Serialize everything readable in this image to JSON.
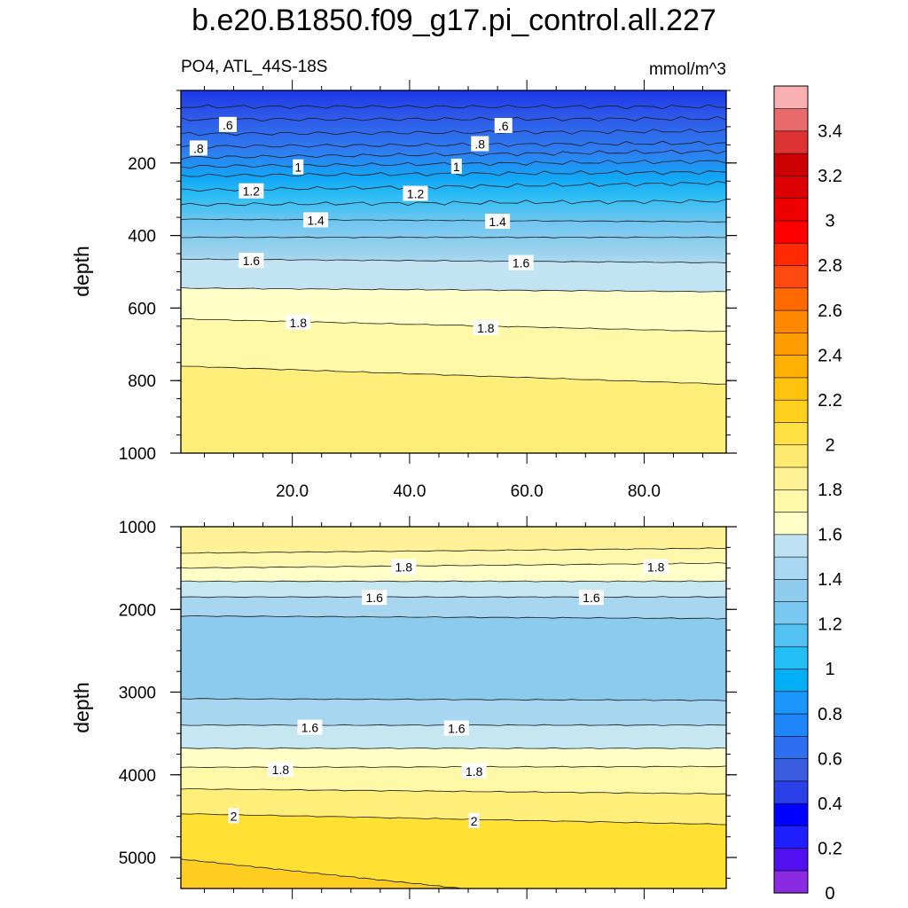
{
  "title": "b.e20.B1850.f09_g17.pi_control.all.227",
  "subtitle_left": "PO4, ATL_44S-18S",
  "subtitle_right": "mmol/m^3",
  "chart_data": [
    {
      "type": "heatmap",
      "panel": "upper",
      "ylabel": "depth",
      "ylim": [
        1000,
        0
      ],
      "xlim": [
        1,
        94
      ],
      "x_ticks": [
        "20.0",
        "40.0",
        "60.0",
        "80.0"
      ],
      "x_tick_values": [
        20,
        40,
        60,
        80
      ],
      "y_ticks": [
        "200",
        "400",
        "600",
        "800",
        "1000"
      ],
      "y_tick_values": [
        200,
        400,
        600,
        800,
        1000
      ],
      "contours": [
        {
          "level": 0.5,
          "depth_left": 45,
          "depth_right": 45
        },
        {
          "level": 0.6,
          "depth_left": 80,
          "depth_right": 78
        },
        {
          "level": 0.7,
          "depth_left": 120,
          "depth_right": 112
        },
        {
          "level": 0.8,
          "depth_left": 155,
          "depth_right": 145
        },
        {
          "level": 0.9,
          "depth_left": 185,
          "depth_right": 168
        },
        {
          "level": 1.0,
          "depth_left": 210,
          "depth_right": 195
        },
        {
          "level": 1.1,
          "depth_left": 235,
          "depth_right": 225
        },
        {
          "level": 1.2,
          "depth_left": 275,
          "depth_right": 255
        },
        {
          "level": 1.3,
          "depth_left": 315,
          "depth_right": 305
        },
        {
          "level": 1.4,
          "depth_left": 355,
          "depth_right": 362
        },
        {
          "level": 1.5,
          "depth_left": 405,
          "depth_right": 405
        },
        {
          "level": 1.6,
          "depth_left": 465,
          "depth_right": 475
        },
        {
          "level": 1.7,
          "depth_left": 545,
          "depth_right": 555
        },
        {
          "level": 1.8,
          "depth_left": 630,
          "depth_right": 665
        },
        {
          "level": 1.9,
          "depth_left": 760,
          "depth_right": 810
        }
      ],
      "contour_labels": [
        {
          "text": ".6",
          "x": 9,
          "depth": 95
        },
        {
          "text": ".6",
          "x": 56,
          "depth": 98
        },
        {
          "text": ".8",
          "x": 4,
          "depth": 160
        },
        {
          "text": ".8",
          "x": 52,
          "depth": 148
        },
        {
          "text": "1",
          "x": 21,
          "depth": 212
        },
        {
          "text": "1",
          "x": 48,
          "depth": 210
        },
        {
          "text": "1.2",
          "x": 13,
          "depth": 278
        },
        {
          "text": "1.2",
          "x": 41,
          "depth": 285
        },
        {
          "text": "1.4",
          "x": 24,
          "depth": 358
        },
        {
          "text": "1.4",
          "x": 55,
          "depth": 362
        },
        {
          "text": "1.6",
          "x": 13,
          "depth": 470
        },
        {
          "text": "1.6",
          "x": 59,
          "depth": 476
        },
        {
          "text": "1.8",
          "x": 21,
          "depth": 640
        },
        {
          "text": "1.8",
          "x": 53,
          "depth": 655
        }
      ]
    },
    {
      "type": "heatmap",
      "panel": "lower",
      "ylabel": "depth",
      "ylim": [
        5375,
        1000
      ],
      "xlim": [
        1,
        94
      ],
      "y_ticks": [
        "1000",
        "2000",
        "3000",
        "4000",
        "5000"
      ],
      "y_tick_values": [
        1000,
        2000,
        3000,
        4000,
        5000
      ],
      "contours": [
        {
          "level": 1.9,
          "depth_left": 1320,
          "depth_right": 1260
        },
        {
          "level": 1.8,
          "depth_left": 1500,
          "depth_right": 1440
        },
        {
          "level": 1.7,
          "depth_left": 1660,
          "depth_right": 1660
        },
        {
          "level": 1.6,
          "depth_left": 1850,
          "depth_right": 1850
        },
        {
          "level": 1.5,
          "depth_left": 2080,
          "depth_right": 2110
        },
        {
          "level": 1.5,
          "depth_left": 3080,
          "depth_right": 3100
        },
        {
          "level": 1.6,
          "depth_left": 3400,
          "depth_right": 3400
        },
        {
          "level": 1.7,
          "depth_left": 3680,
          "depth_right": 3680
        },
        {
          "level": 1.8,
          "depth_left": 3910,
          "depth_right": 3900
        },
        {
          "level": 1.9,
          "depth_left": 4170,
          "depth_right": 4230
        },
        {
          "level": 2.0,
          "depth_left": 4470,
          "depth_right": 4600
        },
        {
          "level": 2.1,
          "depth_left": 5020,
          "depth_right": null,
          "x_end": 49
        }
      ],
      "contour_labels": [
        {
          "text": "1.8",
          "x": 39,
          "depth": 1490
        },
        {
          "text": "1.8",
          "x": 82,
          "depth": 1490
        },
        {
          "text": "1.6",
          "x": 34,
          "depth": 1860
        },
        {
          "text": "1.6",
          "x": 71,
          "depth": 1860
        },
        {
          "text": "1.6",
          "x": 23,
          "depth": 3430
        },
        {
          "text": "1.6",
          "x": 48,
          "depth": 3440
        },
        {
          "text": "1.8",
          "x": 18,
          "depth": 3940
        },
        {
          "text": "1.8",
          "x": 51,
          "depth": 3960
        },
        {
          "text": "2",
          "x": 10,
          "depth": 4500
        },
        {
          "text": "2",
          "x": 51,
          "depth": 4560
        }
      ]
    }
  ],
  "colorbar": {
    "labels": [
      "3.4",
      "3.2",
      "3",
      "2.8",
      "2.6",
      "2.4",
      "2.2",
      "2",
      "1.8",
      "1.6",
      "1.4",
      "1.2",
      "1",
      "0.8",
      "0.6",
      "0.4",
      "0.2",
      "0"
    ],
    "colors_bottom_to_top": [
      "#8a2be2",
      "#5010f0",
      "#2020ff",
      "#0000ff",
      "#2a40e8",
      "#3a5ce0",
      "#2e6ef0",
      "#1e86f8",
      "#1b96fa",
      "#00aef5",
      "#22bef5",
      "#52c2f2",
      "#78c8f2",
      "#90ccee",
      "#a8d8f2",
      "#bfe2f2",
      "#ffffc8",
      "#fff8a8",
      "#fff296",
      "#ffea70",
      "#ffe040",
      "#ffd01e",
      "#ffc20e",
      "#ffb000",
      "#ff9c00",
      "#ff8800",
      "#ff6a00",
      "#ff4a10",
      "#ff2a00",
      "#ff0000",
      "#ee0000",
      "#dd0000",
      "#cc0000",
      "#dd3333",
      "#e86a6a",
      "#f8b0b0"
    ]
  }
}
